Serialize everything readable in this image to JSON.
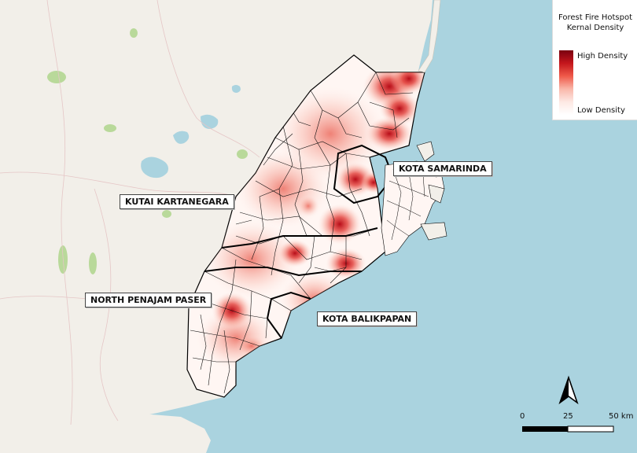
{
  "legend": {
    "title_line1": "Forest Fire Hotspot",
    "title_line2": "Kernal Density",
    "high_label": "High Density",
    "low_label": "Low Density",
    "ramp_colors": [
      "#7a0010",
      "#c4161c",
      "#ef5a4a",
      "#f9b7aa",
      "#fde9e4",
      "#ffffff"
    ]
  },
  "labels": {
    "kutai": "KUTAI KARTANEGARA",
    "samarinda": "KOTA SAMARINDA",
    "penajam": "NORTH PENAJAM PASER",
    "balikpapan": "KOTA BALIKPAPAN"
  },
  "scale_bar": {
    "tick_0": "0",
    "tick_mid": "25",
    "tick_end": "50 km"
  },
  "colors": {
    "sea": "#aad3df",
    "land": "#f2efe9",
    "boundary": "#000000",
    "hotspot": "#c4161c"
  }
}
